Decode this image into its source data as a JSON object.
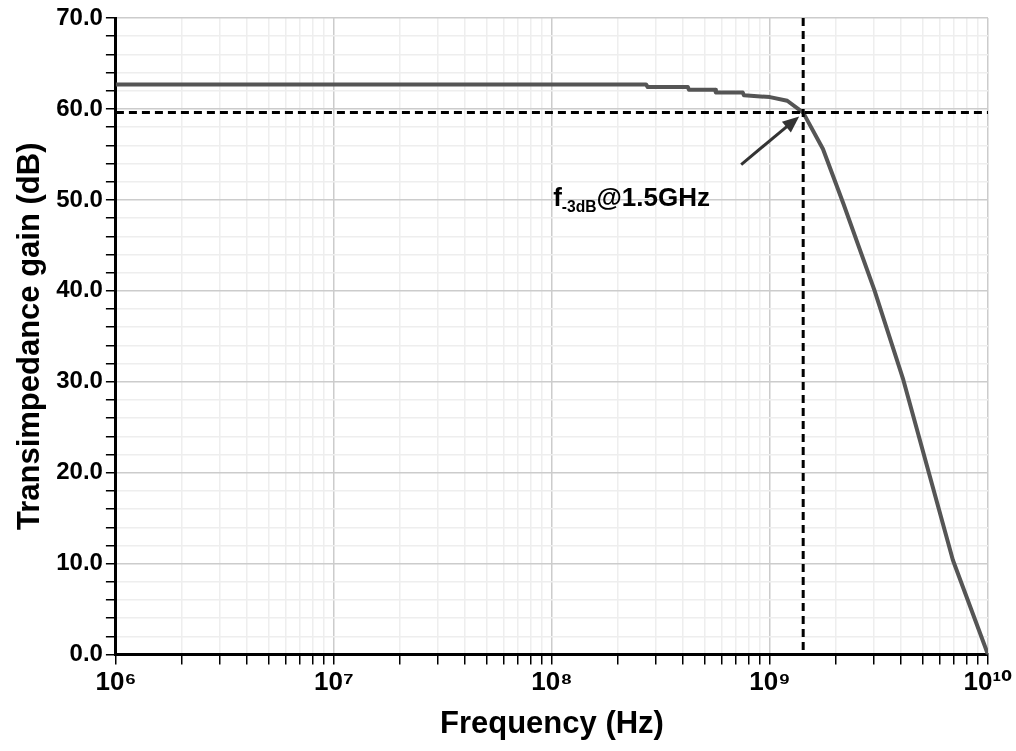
{
  "chart_data": {
    "type": "line",
    "xlabel": "Frequency (Hz)",
    "ylabel": "Transimpedance gain (dB)",
    "log": "x",
    "grid": true,
    "marker": "none",
    "line_style": "solid",
    "legend": false,
    "xlim": [
      1000000,
      10000000000
    ],
    "ylim": [
      0,
      70
    ],
    "xticks": [
      {
        "value": 1000000,
        "label": "10⁶"
      },
      {
        "value": 2000000,
        "label": null
      },
      {
        "value": 3000000,
        "label": null
      },
      {
        "value": 4000000,
        "label": null
      },
      {
        "value": 5000000,
        "label": null
      },
      {
        "value": 6000000,
        "label": null
      },
      {
        "value": 7000000,
        "label": null
      },
      {
        "value": 8000000,
        "label": null
      },
      {
        "value": 9000000,
        "label": null
      },
      {
        "value": 10000000,
        "label": "10⁷"
      },
      {
        "value": 20000000,
        "label": null
      },
      {
        "value": 30000000,
        "label": null
      },
      {
        "value": 40000000,
        "label": null
      },
      {
        "value": 50000000,
        "label": null
      },
      {
        "value": 60000000,
        "label": null
      },
      {
        "value": 70000000,
        "label": null
      },
      {
        "value": 80000000,
        "label": null
      },
      {
        "value": 90000000,
        "label": null
      },
      {
        "value": 100000000,
        "label": "10⁸"
      },
      {
        "value": 200000000,
        "label": null
      },
      {
        "value": 300000000,
        "label": null
      },
      {
        "value": 400000000,
        "label": null
      },
      {
        "value": 500000000,
        "label": null
      },
      {
        "value": 600000000,
        "label": null
      },
      {
        "value": 700000000,
        "label": null
      },
      {
        "value": 800000000,
        "label": null
      },
      {
        "value": 900000000,
        "label": null
      },
      {
        "value": 1000000000,
        "label": "10⁹"
      },
      {
        "value": 2000000000,
        "label": null
      },
      {
        "value": 3000000000,
        "label": null
      },
      {
        "value": 4000000000,
        "label": null
      },
      {
        "value": 5000000000,
        "label": null
      },
      {
        "value": 6000000000,
        "label": null
      },
      {
        "value": 7000000000,
        "label": null
      },
      {
        "value": 8000000000,
        "label": null
      },
      {
        "value": 9000000000,
        "label": null
      },
      {
        "value": 10000000000,
        "label": "10¹⁰"
      }
    ],
    "yticks": [
      {
        "value": 0,
        "label": "0.0"
      },
      {
        "value": 2,
        "label": null
      },
      {
        "value": 4,
        "label": null
      },
      {
        "value": 6,
        "label": null
      },
      {
        "value": 8,
        "label": null
      },
      {
        "value": 10,
        "label": "10.0"
      },
      {
        "value": 12,
        "label": null
      },
      {
        "value": 14,
        "label": null
      },
      {
        "value": 16,
        "label": null
      },
      {
        "value": 18,
        "label": null
      },
      {
        "value": 20,
        "label": "20.0"
      },
      {
        "value": 22,
        "label": null
      },
      {
        "value": 24,
        "label": null
      },
      {
        "value": 26,
        "label": null
      },
      {
        "value": 28,
        "label": null
      },
      {
        "value": 30,
        "label": "30.0"
      },
      {
        "value": 32,
        "label": null
      },
      {
        "value": 34,
        "label": null
      },
      {
        "value": 36,
        "label": null
      },
      {
        "value": 38,
        "label": null
      },
      {
        "value": 40,
        "label": "40.0"
      },
      {
        "value": 42,
        "label": null
      },
      {
        "value": 44,
        "label": null
      },
      {
        "value": 46,
        "label": null
      },
      {
        "value": 48,
        "label": null
      },
      {
        "value": 50,
        "label": "50.0"
      },
      {
        "value": 52,
        "label": null
      },
      {
        "value": 54,
        "label": null
      },
      {
        "value": 56,
        "label": null
      },
      {
        "value": 58,
        "label": null
      },
      {
        "value": 60,
        "label": "60.0"
      },
      {
        "value": 62,
        "label": null
      },
      {
        "value": 64,
        "label": null
      },
      {
        "value": 66,
        "label": null
      },
      {
        "value": 68,
        "label": null
      },
      {
        "value": 70,
        "label": "70.0"
      }
    ],
    "series": [
      {
        "color": "#555555",
        "x": [
          1000000,
          10000000,
          100000000,
          270000000,
          275000000,
          420000000,
          425000000,
          560000000,
          565000000,
          750000000,
          760000000,
          1000000000,
          1200000000,
          1420000000,
          1750000000,
          2170000000,
          3010000000,
          4090000000,
          6900000000,
          10000000000
        ],
        "values": [
          62.7,
          62.7,
          62.7,
          62.7,
          62.4,
          62.4,
          62.1,
          62.1,
          61.8,
          61.8,
          61.5,
          61.3,
          60.9,
          59.6,
          55.6,
          49.6,
          40.1,
          30.2,
          10.4,
          0
        ]
      }
    ],
    "ref_lines": [
      {
        "axis": "y",
        "value": 59.6,
        "color": "#000000",
        "line_style": "dashed"
      },
      {
        "axis": "x",
        "value": 1420000000,
        "color": "#000000",
        "line_style": "dashed"
      }
    ],
    "annotations": [
      "f$_{-3dB}$@1.5GHz"
    ]
  }
}
